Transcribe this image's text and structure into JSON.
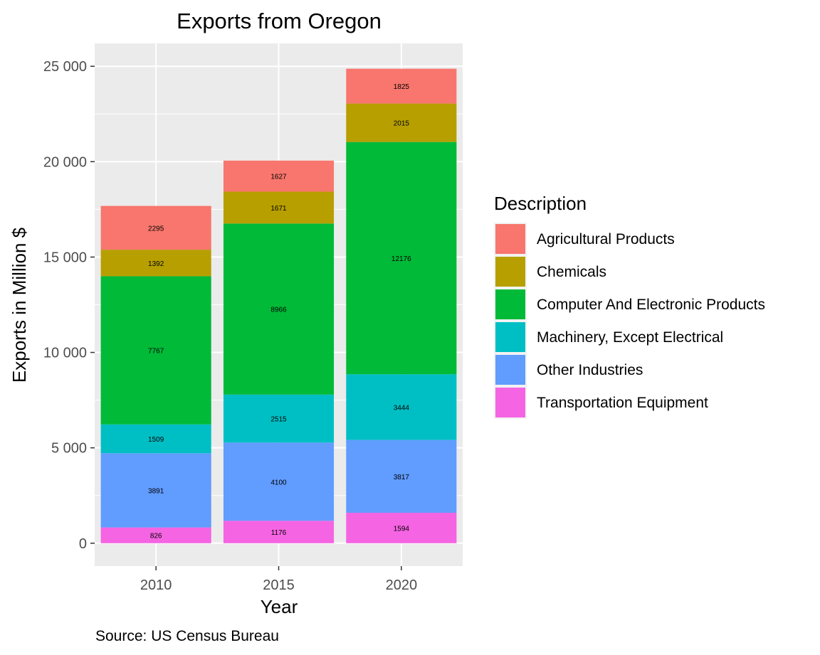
{
  "chart_data": {
    "type": "bar",
    "stacked": true,
    "title": "Exports from Oregon",
    "xlabel": "Year",
    "ylabel": "Exports in Million $",
    "caption": "Source: US Census Bureau",
    "categories": [
      "2010",
      "2015",
      "2020"
    ],
    "yticks": [
      0,
      5000,
      10000,
      15000,
      20000,
      25000
    ],
    "ytick_labels": [
      "0",
      "5 000",
      "10 000",
      "15 000",
      "20 000",
      "25 000"
    ],
    "ylim": [
      -1200,
      26200
    ],
    "grid": true,
    "legend": {
      "title": "Description",
      "position": "right"
    },
    "series": [
      {
        "name": "Transportation Equipment",
        "color": "#F564E3",
        "values": [
          826,
          1176,
          1594
        ]
      },
      {
        "name": "Other Industries",
        "color": "#619CFF",
        "values": [
          3891,
          4100,
          3817
        ]
      },
      {
        "name": "Machinery, Except Electrical",
        "color": "#00BFC4",
        "values": [
          1509,
          2515,
          3444
        ]
      },
      {
        "name": "Computer And Electronic Products",
        "color": "#00BA38",
        "values": [
          7767,
          8966,
          12176
        ]
      },
      {
        "name": "Chemicals",
        "color": "#B79F00",
        "values": [
          1392,
          1671,
          2015
        ]
      },
      {
        "name": "Agricultural Products",
        "color": "#F8766D",
        "values": [
          2295,
          1627,
          1825
        ]
      }
    ],
    "legend_order": [
      "Agricultural Products",
      "Chemicals",
      "Computer And Electronic Products",
      "Machinery, Except Electrical",
      "Other Industries",
      "Transportation Equipment"
    ]
  }
}
